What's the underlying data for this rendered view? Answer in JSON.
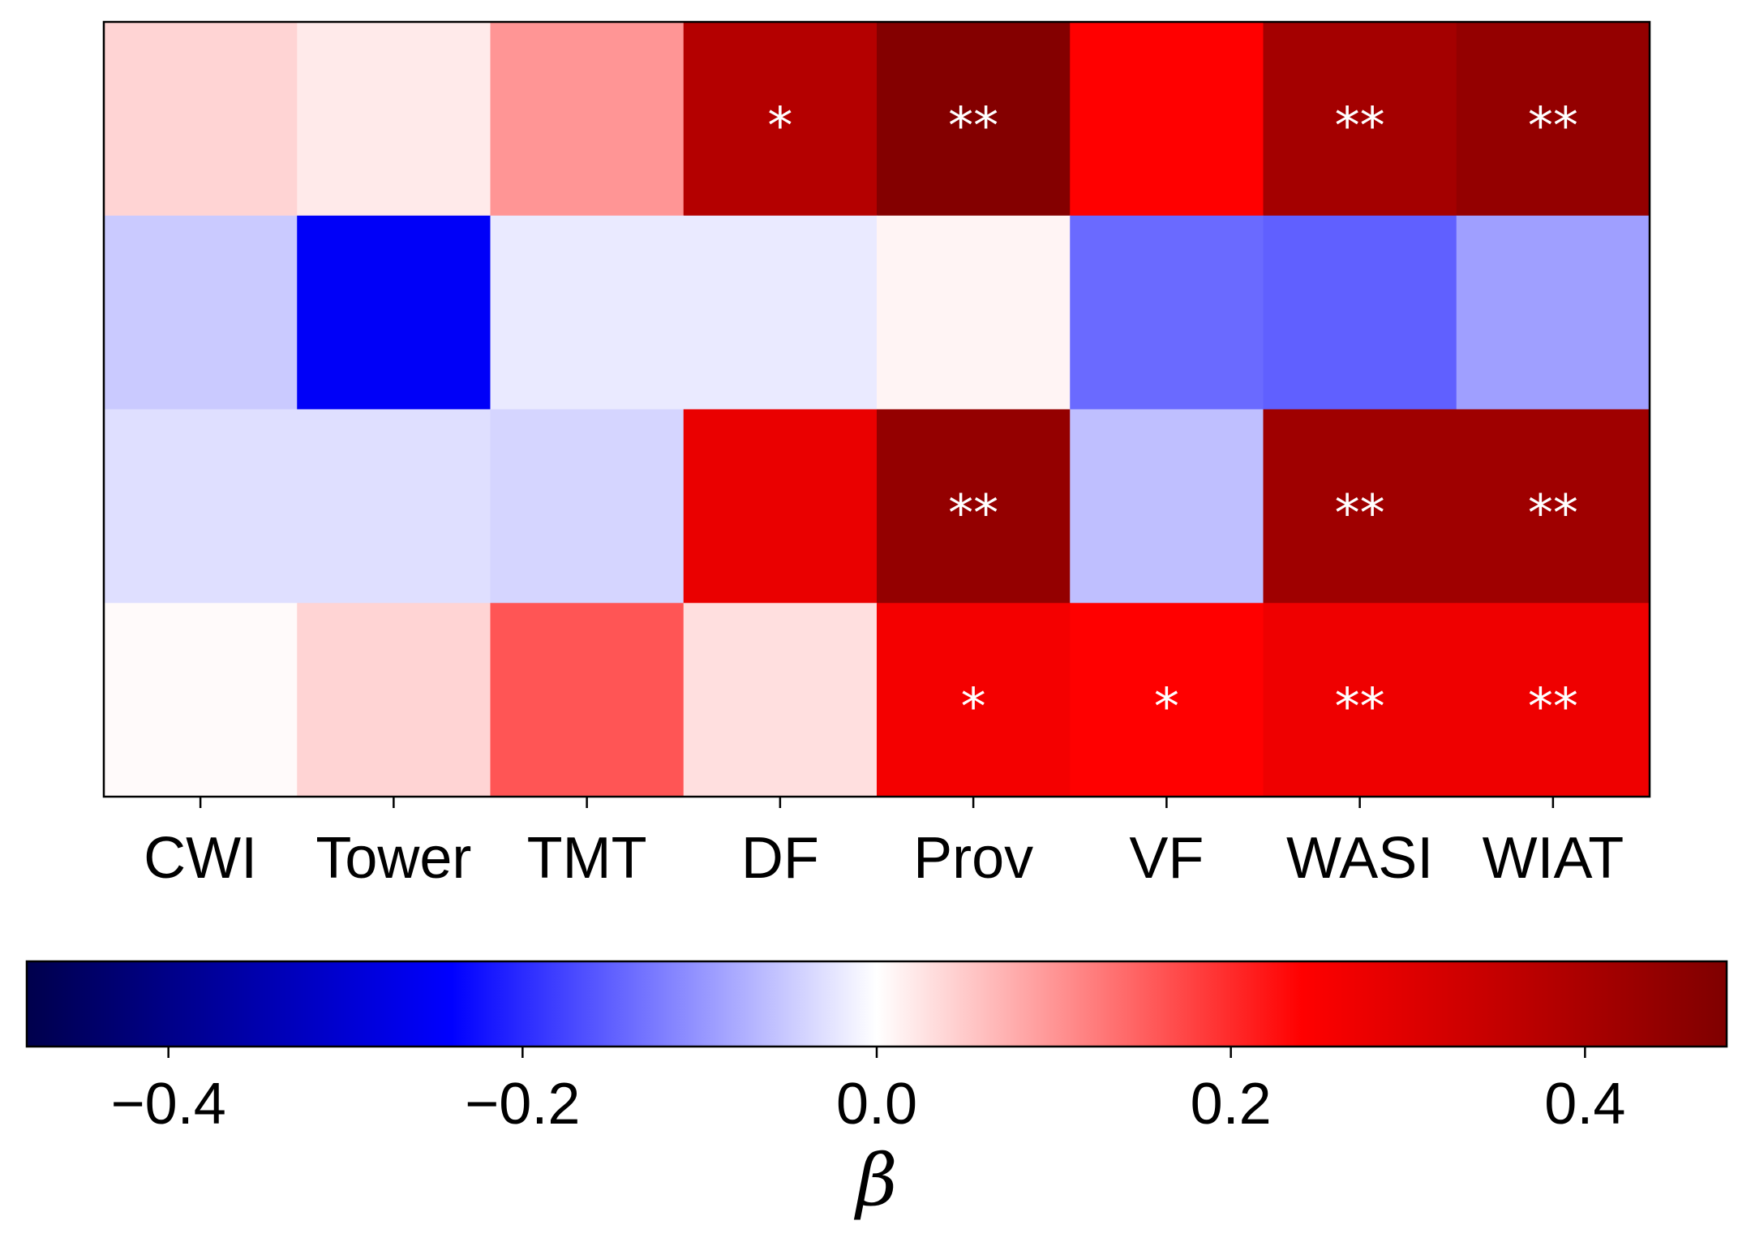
{
  "chart_data": {
    "type": "heatmap",
    "columns": [
      "CWI",
      "Tower",
      "TMT",
      "DF",
      "Prov",
      "VF",
      "WASI",
      "WIAT"
    ],
    "rows": 4,
    "values": [
      [
        0.04,
        0.02,
        0.1,
        0.38,
        0.47,
        0.24,
        0.41,
        0.44
      ],
      [
        -0.05,
        -0.25,
        -0.02,
        -0.02,
        0.01,
        -0.14,
        -0.15,
        -0.09
      ],
      [
        -0.03,
        -0.03,
        -0.04,
        0.28,
        0.44,
        -0.06,
        0.42,
        0.42
      ],
      [
        0.005,
        0.04,
        0.16,
        0.03,
        0.26,
        0.24,
        0.27,
        0.27
      ]
    ],
    "significance": [
      [
        "",
        "",
        "",
        "*",
        "**",
        "",
        "**",
        "**"
      ],
      [
        "",
        "",
        "",
        "",
        "",
        "",
        "",
        ""
      ],
      [
        "",
        "",
        "",
        "",
        "**",
        "",
        "**",
        "**"
      ],
      [
        "",
        "",
        "",
        "",
        "*",
        "*",
        "**",
        "**"
      ]
    ],
    "colormap": "seismic",
    "colormap_stops": [
      "#00004c",
      "#0000ff",
      "#ffffff",
      "#ff0000",
      "#7f0000"
    ],
    "vlim": [
      -0.48,
      0.48
    ],
    "colorbar": {
      "orientation": "horizontal",
      "ticks": [
        -0.4,
        -0.2,
        0.0,
        0.2,
        0.4
      ],
      "tick_labels": [
        "−0.4",
        "−0.2",
        "0.0",
        "0.2",
        "0.4"
      ],
      "label": "β"
    },
    "grid": false
  }
}
